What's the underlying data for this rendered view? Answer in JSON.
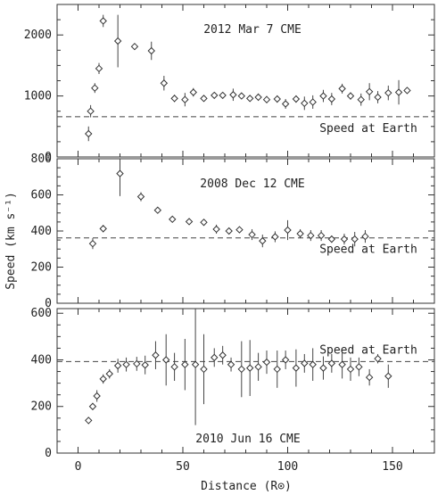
{
  "chart_data": {
    "type": "scatter",
    "xlabel": "Distance (R⊙)",
    "ylabel": "Speed (km s⁻¹)",
    "xlim": [
      -10,
      170
    ],
    "xticks": [
      0,
      50,
      100,
      150
    ],
    "panels": [
      {
        "title": "2012 Mar 7 CME",
        "ylim": [
          0,
          2500
        ],
        "yticks": [
          0,
          1000,
          2000
        ],
        "reference": {
          "label": "Speed at Earth",
          "value": 660
        },
        "series": [
          {
            "marker": "diamond",
            "points": [
              {
                "x": 5,
                "y": 380,
                "err": 120
              },
              {
                "x": 6,
                "y": 750,
                "err": 100
              },
              {
                "x": 8,
                "y": 1130,
                "err": 80
              },
              {
                "x": 10,
                "y": 1450,
                "err": 90
              },
              {
                "x": 12,
                "y": 2230,
                "err": 100
              },
              {
                "x": 19,
                "y": 1900,
                "err": 430
              },
              {
                "x": 27,
                "y": 1810,
                "err": 50
              },
              {
                "x": 35,
                "y": 1740,
                "err": 150
              },
              {
                "x": 41,
                "y": 1210,
                "err": 120
              },
              {
                "x": 46,
                "y": 960,
                "err": 60
              },
              {
                "x": 51,
                "y": 940,
                "err": 110
              },
              {
                "x": 55,
                "y": 1060,
                "err": 70
              },
              {
                "x": 60,
                "y": 960,
                "err": 50
              },
              {
                "x": 65,
                "y": 1010,
                "err": 50
              },
              {
                "x": 69,
                "y": 1010,
                "err": 50
              },
              {
                "x": 74,
                "y": 1020,
                "err": 100
              },
              {
                "x": 78,
                "y": 1000,
                "err": 50
              },
              {
                "x": 82,
                "y": 960,
                "err": 50
              },
              {
                "x": 86,
                "y": 980,
                "err": 60
              },
              {
                "x": 90,
                "y": 940,
                "err": 60
              },
              {
                "x": 95,
                "y": 950,
                "err": 60
              },
              {
                "x": 99,
                "y": 870,
                "err": 80
              },
              {
                "x": 104,
                "y": 950,
                "err": 60
              },
              {
                "x": 108,
                "y": 880,
                "err": 110
              },
              {
                "x": 112,
                "y": 900,
                "err": 110
              },
              {
                "x": 117,
                "y": 1000,
                "err": 100
              },
              {
                "x": 121,
                "y": 950,
                "err": 100
              },
              {
                "x": 126,
                "y": 1120,
                "err": 80
              },
              {
                "x": 130,
                "y": 1000,
                "err": 60
              },
              {
                "x": 135,
                "y": 940,
                "err": 100
              },
              {
                "x": 139,
                "y": 1070,
                "err": 140
              },
              {
                "x": 143,
                "y": 980,
                "err": 100
              },
              {
                "x": 148,
                "y": 1050,
                "err": 120
              },
              {
                "x": 153,
                "y": 1060,
                "err": 200
              },
              {
                "x": 157,
                "y": 1090,
                "err": 50
              }
            ]
          }
        ]
      },
      {
        "title": "2008 Dec 12 CME",
        "ylim": [
          0,
          800
        ],
        "yticks": [
          0,
          200,
          400,
          600,
          800
        ],
        "reference": {
          "label": "Speed at Earth",
          "value": 362
        },
        "series": [
          {
            "marker": "diamond",
            "points": [
              {
                "x": 7,
                "y": 330,
                "err": 30
              },
              {
                "x": 12,
                "y": 413,
                "err": 20
              },
              {
                "x": 20,
                "y": 718,
                "err": 125
              },
              {
                "x": 30,
                "y": 590,
                "err": 25
              },
              {
                "x": 38,
                "y": 515,
                "err": 12
              },
              {
                "x": 45,
                "y": 465,
                "err": 10
              },
              {
                "x": 53,
                "y": 452,
                "err": 12
              },
              {
                "x": 60,
                "y": 448,
                "err": 12
              },
              {
                "x": 66,
                "y": 410,
                "err": 25
              },
              {
                "x": 72,
                "y": 400,
                "err": 12
              },
              {
                "x": 77,
                "y": 407,
                "err": 12
              },
              {
                "x": 83,
                "y": 380,
                "err": 30
              },
              {
                "x": 88,
                "y": 345,
                "err": 35
              },
              {
                "x": 94,
                "y": 368,
                "err": 30
              },
              {
                "x": 100,
                "y": 405,
                "err": 55
              },
              {
                "x": 106,
                "y": 385,
                "err": 25
              },
              {
                "x": 111,
                "y": 375,
                "err": 30
              },
              {
                "x": 116,
                "y": 375,
                "err": 30
              },
              {
                "x": 121,
                "y": 355,
                "err": 20
              },
              {
                "x": 127,
                "y": 355,
                "err": 30
              },
              {
                "x": 132,
                "y": 355,
                "err": 40
              },
              {
                "x": 137,
                "y": 370,
                "err": 35
              }
            ]
          }
        ]
      },
      {
        "title": "2010 Jun 16 CME",
        "ylim": [
          0,
          620
        ],
        "yticks": [
          0,
          200,
          400,
          600
        ],
        "reference": {
          "label": "Speed at Earth",
          "value": 393
        },
        "series": [
          {
            "marker": "diamond",
            "points": [
              {
                "x": 5,
                "y": 140,
                "err": 15
              },
              {
                "x": 7,
                "y": 200,
                "err": 15
              },
              {
                "x": 9,
                "y": 245,
                "err": 25
              },
              {
                "x": 12,
                "y": 318,
                "err": 20
              },
              {
                "x": 15,
                "y": 340,
                "err": 20
              },
              {
                "x": 19,
                "y": 375,
                "err": 30
              },
              {
                "x": 23,
                "y": 380,
                "err": 30
              },
              {
                "x": 28,
                "y": 383,
                "err": 30
              },
              {
                "x": 32,
                "y": 378,
                "err": 40
              },
              {
                "x": 37,
                "y": 420,
                "err": 60
              },
              {
                "x": 42,
                "y": 400,
                "err": 110
              },
              {
                "x": 46,
                "y": 370,
                "err": 60
              },
              {
                "x": 51,
                "y": 380,
                "err": 110
              },
              {
                "x": 56,
                "y": 380,
                "err": 260
              },
              {
                "x": 60,
                "y": 360,
                "err": 150
              },
              {
                "x": 65,
                "y": 410,
                "err": 40
              },
              {
                "x": 69,
                "y": 420,
                "err": 40
              },
              {
                "x": 73,
                "y": 380,
                "err": 30
              },
              {
                "x": 78,
                "y": 360,
                "err": 120
              },
              {
                "x": 82,
                "y": 365,
                "err": 120
              },
              {
                "x": 86,
                "y": 370,
                "err": 60
              },
              {
                "x": 90,
                "y": 390,
                "err": 50
              },
              {
                "x": 95,
                "y": 360,
                "err": 80
              },
              {
                "x": 99,
                "y": 400,
                "err": 40
              },
              {
                "x": 104,
                "y": 365,
                "err": 80
              },
              {
                "x": 108,
                "y": 385,
                "err": 40
              },
              {
                "x": 112,
                "y": 380,
                "err": 70
              },
              {
                "x": 117,
                "y": 365,
                "err": 50
              },
              {
                "x": 121,
                "y": 385,
                "err": 40
              },
              {
                "x": 126,
                "y": 380,
                "err": 60
              },
              {
                "x": 130,
                "y": 360,
                "err": 50
              },
              {
                "x": 134,
                "y": 370,
                "err": 40
              },
              {
                "x": 139,
                "y": 325,
                "err": 35
              },
              {
                "x": 143,
                "y": 405,
                "err": 20
              },
              {
                "x": 148,
                "y": 330,
                "err": 50
              }
            ]
          }
        ]
      }
    ]
  }
}
